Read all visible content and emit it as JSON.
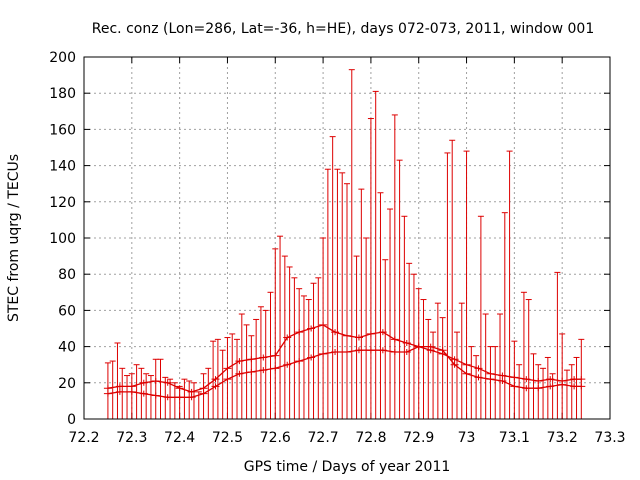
{
  "chart_data": {
    "type": "line",
    "title": "Rec. conz (Lon=286, Lat=-36, h=HE), days 072-073, 2011, window 001",
    "xlabel": "GPS time / Days of year 2011",
    "ylabel": "STEC from uqrg / TECUs",
    "xlim": [
      72.2,
      73.3
    ],
    "ylim": [
      0,
      200
    ],
    "xticks": [
      "72.2",
      "72.3",
      "72.4",
      "72.5",
      "72.6",
      "72.7",
      "72.8",
      "72.9",
      "73",
      "73.1",
      "73.2",
      "73.3"
    ],
    "yticks": [
      "0",
      "20",
      "40",
      "60",
      "80",
      "100",
      "120",
      "140",
      "160",
      "180",
      "200"
    ],
    "grid": true,
    "color": "#dd0000",
    "series": [
      {
        "x": [
          72.25,
          72.275,
          72.3,
          72.325,
          72.35,
          72.375,
          72.4,
          72.425,
          72.45,
          72.475,
          72.5,
          72.525,
          72.55,
          72.575,
          72.6,
          72.625,
          72.65,
          72.675,
          72.7,
          72.725,
          72.75,
          72.775,
          72.8,
          72.825,
          72.85,
          72.875,
          72.9,
          72.925,
          72.95,
          72.975,
          73.0,
          73.025,
          73.05,
          73.075,
          73.1,
          73.125,
          73.15,
          73.175,
          73.2,
          73.225,
          73.24
        ],
        "values": [
          14,
          15,
          15,
          14,
          13,
          12,
          12,
          12,
          14,
          18,
          22,
          25,
          26,
          27,
          28,
          30,
          32,
          34,
          36,
          37,
          37,
          38,
          38,
          38,
          37,
          37,
          40,
          40,
          38,
          30,
          25,
          23,
          22,
          21,
          18,
          17,
          17,
          18,
          19,
          18,
          18
        ]
      },
      {
        "x": [
          72.25,
          72.275,
          72.3,
          72.325,
          72.35,
          72.375,
          72.4,
          72.425,
          72.45,
          72.475,
          72.5,
          72.525,
          72.55,
          72.575,
          72.6,
          72.625,
          72.65,
          72.675,
          72.7,
          72.725,
          72.75,
          72.775,
          72.8,
          72.825,
          72.85,
          72.875,
          72.9,
          72.925,
          72.95,
          72.975,
          73.0,
          73.025,
          73.05,
          73.075,
          73.1,
          73.125,
          73.15,
          73.175,
          73.2,
          73.225,
          73.24
        ],
        "values": [
          17,
          18,
          18,
          20,
          21,
          20,
          17,
          15,
          17,
          22,
          28,
          32,
          33,
          34,
          35,
          45,
          48,
          50,
          52,
          48,
          46,
          45,
          47,
          48,
          44,
          42,
          40,
          38,
          36,
          33,
          30,
          28,
          25,
          24,
          23,
          22,
          21,
          22,
          21,
          22,
          22
        ]
      }
    ],
    "bars": {
      "x": [
        72.25,
        72.26,
        72.27,
        72.28,
        72.29,
        72.3,
        72.31,
        72.32,
        72.33,
        72.34,
        72.35,
        72.36,
        72.37,
        72.38,
        72.39,
        72.4,
        72.41,
        72.42,
        72.43,
        72.44,
        72.45,
        72.46,
        72.47,
        72.48,
        72.49,
        72.5,
        72.51,
        72.52,
        72.53,
        72.54,
        72.55,
        72.56,
        72.57,
        72.58,
        72.59,
        72.6,
        72.61,
        72.62,
        72.63,
        72.64,
        72.65,
        72.66,
        72.67,
        72.68,
        72.69,
        72.7,
        72.71,
        72.72,
        72.73,
        72.74,
        72.75,
        72.76,
        72.77,
        72.78,
        72.79,
        72.8,
        72.81,
        72.82,
        72.83,
        72.84,
        72.85,
        72.86,
        72.87,
        72.88,
        72.89,
        72.9,
        72.91,
        72.92,
        72.93,
        72.94,
        72.95,
        72.96,
        72.97,
        72.98,
        72.99,
        73.0,
        73.01,
        73.02,
        73.03,
        73.04,
        73.05,
        73.06,
        73.07,
        73.08,
        73.09,
        73.1,
        73.11,
        73.12,
        73.13,
        73.14,
        73.15,
        73.16,
        73.17,
        73.18,
        73.19,
        73.2,
        73.21,
        73.22,
        73.23,
        73.24
      ],
      "top": [
        31,
        32,
        42,
        28,
        24,
        25,
        30,
        28,
        25,
        24,
        33,
        33,
        23,
        22,
        20,
        18,
        22,
        21,
        20,
        15,
        25,
        28,
        43,
        44,
        38,
        45,
        47,
        44,
        58,
        52,
        46,
        55,
        62,
        60,
        70,
        94,
        101,
        90,
        84,
        78,
        72,
        68,
        66,
        75,
        78,
        100,
        138,
        156,
        138,
        136,
        130,
        193,
        90,
        127,
        100,
        166,
        181,
        125,
        88,
        116,
        168,
        143,
        112,
        86,
        80,
        72,
        66,
        55,
        48,
        64,
        56,
        147,
        154,
        48,
        64,
        148,
        40,
        35,
        112,
        58,
        40,
        40,
        58,
        114,
        148,
        43,
        30,
        70,
        66,
        36,
        30,
        28,
        34,
        25,
        81,
        47,
        27,
        30,
        34,
        44
      ]
    }
  }
}
